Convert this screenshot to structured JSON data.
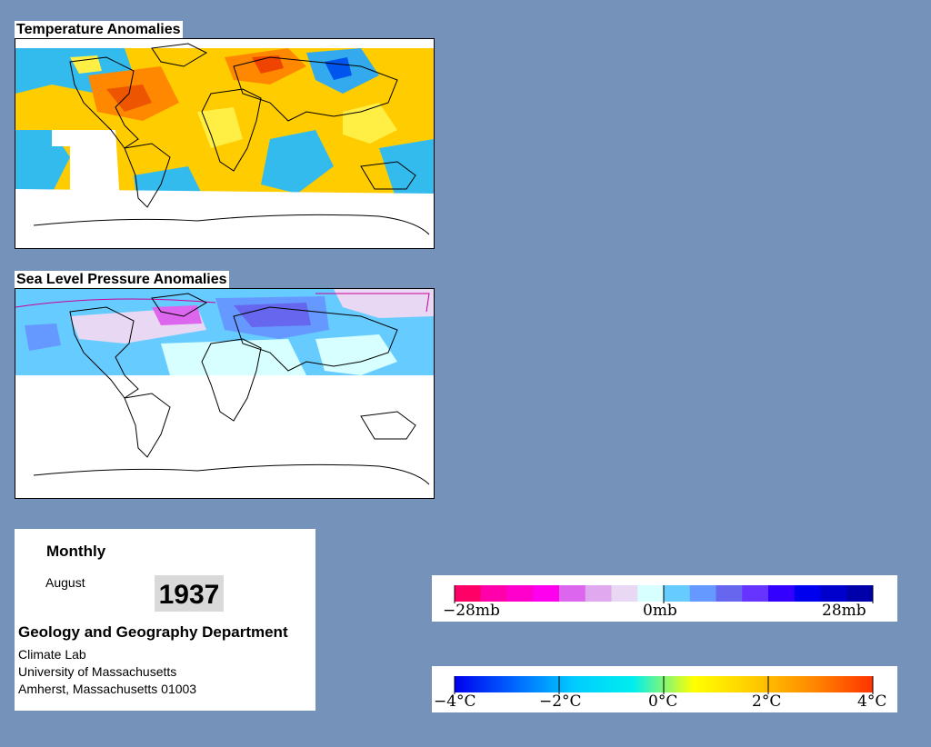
{
  "temperature_map": {
    "title": "Temperature Anomalies"
  },
  "pressure_map": {
    "title": "Sea Level Pressure Anomalies"
  },
  "info": {
    "period": "Monthly",
    "month": "August",
    "year": "1937",
    "department": "Geology and Geography Department",
    "lab": "Climate Lab",
    "university": "University of Massachusetts",
    "address": "Amherst, Massachusetts 01003"
  },
  "pressure_legend": {
    "labels": [
      "−28mb",
      "0mb",
      "28mb"
    ],
    "colors": [
      "#ff0066",
      "#ff00aa",
      "#ff00cc",
      "#ff00ee",
      "#dd66ee",
      "#e0a8ee",
      "#e8d8f4",
      "#d8ffff",
      "#66ccff",
      "#6699ff",
      "#6666ee",
      "#6633ff",
      "#3300ff",
      "#0000ee",
      "#0000cc",
      "#0000aa"
    ]
  },
  "temperature_legend": {
    "labels": [
      "−4°C",
      "−2°C",
      "0°C",
      "2°C",
      "4°C"
    ],
    "stops": [
      "#0000ee",
      "#0066ff",
      "#00ccff",
      "#00eeee",
      "#ffff00",
      "#ffcc00",
      "#ff8800",
      "#ff3300"
    ]
  }
}
